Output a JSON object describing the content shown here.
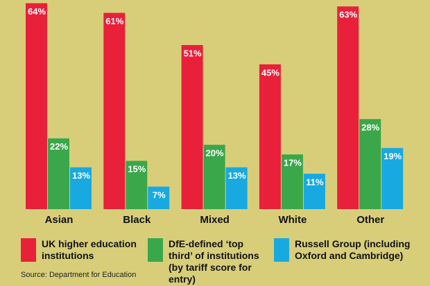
{
  "chart_data": {
    "type": "bar",
    "categories": [
      "Asian",
      "Black",
      "Mixed",
      "White",
      "Other"
    ],
    "series": [
      {
        "name": "UK higher education institutions",
        "color": "#e8203a",
        "values": [
          64,
          61,
          51,
          45,
          63
        ],
        "value_labels": [
          "64%",
          "61%",
          "51%",
          "45%",
          "63%"
        ]
      },
      {
        "name": "DfE-defined ‘top third’ of institutions (by tariff score for entry)",
        "color": "#3aa74a",
        "values": [
          22,
          15,
          20,
          17,
          28
        ],
        "value_labels": [
          "22%",
          "15%",
          "20%",
          "17%",
          "28%"
        ]
      },
      {
        "name": "Russell Group (including Oxford and Cambridge)",
        "color": "#18a9e1",
        "values": [
          13,
          7,
          13,
          11,
          19
        ],
        "value_labels": [
          "13%",
          "7%",
          "13%",
          "11%",
          "19%"
        ]
      }
    ],
    "ylim": [
      0,
      65
    ],
    "source": "Source: Department for Education"
  }
}
